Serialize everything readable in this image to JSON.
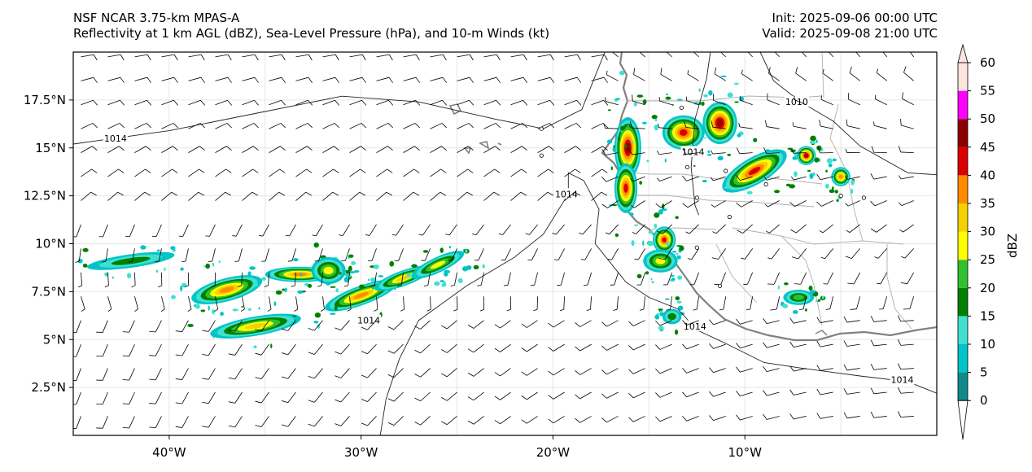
{
  "header": {
    "line1_left": "NSF NCAR 3.75-km MPAS-A",
    "line2_left": "Reflectivity at 1 km AGL (dBZ), Sea-Level Pressure (hPa), and 10-m Winds (kt)",
    "line1_right": "Init: 2025-09-06 00:00 UTC",
    "line2_right": "Valid: 2025-09-08 21:00 UTC"
  },
  "map": {
    "lon_range": [
      -45,
      0
    ],
    "lat_range": [
      0,
      20
    ],
    "lat_ticks": [
      {
        "value": 2.5,
        "label": "2.5°N"
      },
      {
        "value": 5,
        "label": "5°N"
      },
      {
        "value": 7.5,
        "label": "7.5°N"
      },
      {
        "value": 10,
        "label": "10°N"
      },
      {
        "value": 12.5,
        "label": "12.5°N"
      },
      {
        "value": 15,
        "label": "15°N"
      },
      {
        "value": 17.5,
        "label": "17.5°N"
      }
    ],
    "lon_ticks": [
      {
        "value": -40,
        "label": "40°W"
      },
      {
        "value": -30,
        "label": "30°W"
      },
      {
        "value": -20,
        "label": "20°W"
      },
      {
        "value": -10,
        "label": "10°W"
      }
    ],
    "isobar_label": "1014",
    "isobar_label_2": "1010",
    "isobar_labels": [
      {
        "text": "1014",
        "lon": -42.8,
        "lat": 15.5
      },
      {
        "text": "1014",
        "lon": -19.3,
        "lat": 12.6
      },
      {
        "text": "1014",
        "lon": -29.6,
        "lat": 6.0
      },
      {
        "text": "1014",
        "lon": -12.6,
        "lat": 5.7
      },
      {
        "text": "1014",
        "lon": -12.7,
        "lat": 14.8
      },
      {
        "text": "1014",
        "lon": -1.8,
        "lat": 2.9
      },
      {
        "text": "1010",
        "lon": -7.3,
        "lat": 17.4
      }
    ],
    "isobars": [
      [
        [
          -45,
          15.2
        ],
        [
          -40,
          15.9
        ],
        [
          -35,
          16.9
        ],
        [
          -31,
          17.7
        ],
        [
          -27,
          17.4
        ],
        [
          -23,
          16.5
        ],
        [
          -20.5,
          16.0
        ],
        [
          -18.5,
          17.0
        ],
        [
          -17.3,
          20
        ]
      ],
      [
        [
          -29,
          0
        ],
        [
          -28.7,
          1.9
        ],
        [
          -28,
          4
        ],
        [
          -27,
          6
        ],
        [
          -24.5,
          7.8
        ],
        [
          -22,
          9.3
        ],
        [
          -20.5,
          10.5
        ],
        [
          -19.2,
          12.6
        ],
        [
          -19.2,
          13.7
        ],
        [
          -18.4,
          13.3
        ],
        [
          -17.6,
          11.8
        ],
        [
          -17.8,
          10
        ],
        [
          -16.2,
          8
        ],
        [
          -15,
          7.2
        ],
        [
          -13.5,
          6.6
        ],
        [
          -12.5,
          5.5
        ],
        [
          -11,
          4.8
        ],
        [
          -9,
          3.8
        ],
        [
          -7,
          3.5
        ],
        [
          -4,
          3.1
        ],
        [
          -1.5,
          2.8
        ],
        [
          0,
          2.2
        ]
      ],
      [
        [
          -9.2,
          20
        ],
        [
          -8.5,
          18.5
        ],
        [
          -7.1,
          17.4
        ],
        [
          -5.4,
          16.4
        ],
        [
          -4,
          15.1
        ],
        [
          -1.5,
          13.7
        ],
        [
          0,
          13.6
        ]
      ],
      [
        [
          -11.8,
          20
        ],
        [
          -12,
          18.6
        ],
        [
          -12.6,
          16.5
        ],
        [
          -12.8,
          14
        ],
        [
          -12.6,
          12
        ],
        [
          -12.4,
          11.5
        ]
      ]
    ],
    "storm_cells": [
      {
        "lon": -37.0,
        "lat": 7.6,
        "rx": 1.9,
        "ry": 0.6,
        "angle": -15,
        "dbz": 35
      },
      {
        "lon": -35.5,
        "lat": 5.7,
        "rx": 2.4,
        "ry": 0.5,
        "angle": -10,
        "dbz": 30
      },
      {
        "lon": -33.2,
        "lat": 8.4,
        "rx": 1.8,
        "ry": 0.4,
        "angle": 0,
        "dbz": 35
      },
      {
        "lon": -31.7,
        "lat": 8.6,
        "rx": 0.9,
        "ry": 0.7,
        "angle": 0,
        "dbz": 25
      },
      {
        "lon": -30.0,
        "lat": 7.3,
        "rx": 2.0,
        "ry": 0.5,
        "angle": -20,
        "dbz": 35
      },
      {
        "lon": -27.8,
        "lat": 8.2,
        "rx": 1.6,
        "ry": 0.4,
        "angle": -20,
        "dbz": 30
      },
      {
        "lon": -26.0,
        "lat": 8.9,
        "rx": 1.5,
        "ry": 0.4,
        "angle": -25,
        "dbz": 25
      },
      {
        "lon": -42.0,
        "lat": 9.1,
        "rx": 2.3,
        "ry": 0.35,
        "angle": -8,
        "dbz": 15
      },
      {
        "lon": -16.1,
        "lat": 15.0,
        "rx": 0.7,
        "ry": 1.6,
        "angle": 0,
        "dbz": 45
      },
      {
        "lon": -16.2,
        "lat": 12.9,
        "rx": 0.6,
        "ry": 1.3,
        "angle": 0,
        "dbz": 40
      },
      {
        "lon": -14.2,
        "lat": 10.2,
        "rx": 0.6,
        "ry": 0.7,
        "angle": 0,
        "dbz": 40
      },
      {
        "lon": -14.4,
        "lat": 9.1,
        "rx": 0.9,
        "ry": 0.6,
        "angle": 0,
        "dbz": 25
      },
      {
        "lon": -13.2,
        "lat": 15.8,
        "rx": 1.1,
        "ry": 0.9,
        "angle": 0,
        "dbz": 40
      },
      {
        "lon": -11.3,
        "lat": 16.3,
        "rx": 0.9,
        "ry": 1.1,
        "angle": 0,
        "dbz": 45
      },
      {
        "lon": -9.5,
        "lat": 13.8,
        "rx": 1.9,
        "ry": 0.7,
        "angle": -30,
        "dbz": 40
      },
      {
        "lon": -6.8,
        "lat": 14.6,
        "rx": 0.5,
        "ry": 0.5,
        "angle": 0,
        "dbz": 45
      },
      {
        "lon": -5.0,
        "lat": 13.5,
        "rx": 0.5,
        "ry": 0.5,
        "angle": 0,
        "dbz": 35
      },
      {
        "lon": -13.8,
        "lat": 6.2,
        "rx": 0.5,
        "ry": 0.4,
        "angle": 0,
        "dbz": 15
      },
      {
        "lon": -7.2,
        "lat": 7.2,
        "rx": 0.8,
        "ry": 0.4,
        "angle": 0,
        "dbz": 20
      }
    ]
  },
  "colorbar": {
    "unit": "dBZ",
    "levels": [
      0,
      5,
      10,
      15,
      20,
      25,
      30,
      35,
      40,
      45,
      50,
      55,
      60
    ],
    "colors": [
      "#108a8a",
      "#00c4c8",
      "#40e0d0",
      "#008000",
      "#30c030",
      "#ffff00",
      "#f7d000",
      "#ff8c00",
      "#dd0000",
      "#8b0000",
      "#ff00ff",
      "#fde4dc"
    ],
    "labels": [
      "0",
      "5",
      "10",
      "15",
      "20",
      "25",
      "30",
      "35",
      "40",
      "45",
      "50",
      "55",
      "60"
    ]
  }
}
